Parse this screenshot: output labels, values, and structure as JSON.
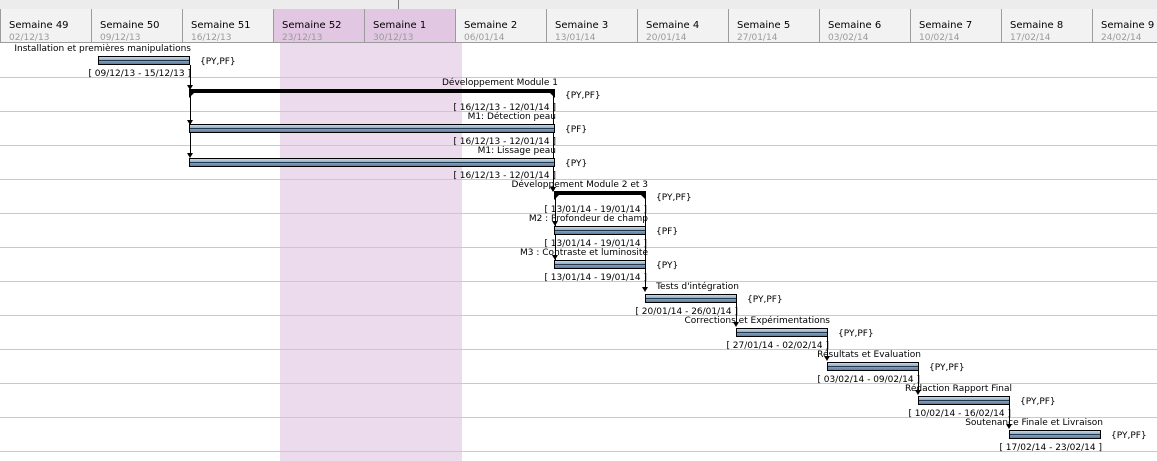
{
  "gantt": {
    "weeks": [
      {
        "label": "Semaine 49",
        "date": "02/12/13"
      },
      {
        "label": "Semaine 50",
        "date": "09/12/13"
      },
      {
        "label": "Semaine 51",
        "date": "16/12/13"
      },
      {
        "label": "Semaine 52",
        "date": "23/12/13"
      },
      {
        "label": "Semaine 1",
        "date": "30/12/13"
      },
      {
        "label": "Semaine 2",
        "date": "06/01/14"
      },
      {
        "label": "Semaine 3",
        "date": "13/01/14"
      },
      {
        "label": "Semaine 4",
        "date": "20/01/14"
      },
      {
        "label": "Semaine 5",
        "date": "27/01/14"
      },
      {
        "label": "Semaine 6",
        "date": "03/02/14"
      },
      {
        "label": "Semaine 7",
        "date": "10/02/14"
      },
      {
        "label": "Semaine 8",
        "date": "17/02/14"
      },
      {
        "label": "Semaine 9",
        "date": "24/02/14"
      }
    ],
    "tasks": [
      {
        "name": "Installation et premières manipulations",
        "dates": "[ 09/12/13 - 15/12/13 ]",
        "resources": "{PY,PF}"
      },
      {
        "name": "Développement Module 1",
        "dates": "[ 16/12/13 - 12/01/14 ]",
        "resources": "{PY,PF}"
      },
      {
        "name": "M1: Détection peau",
        "dates": "[ 16/12/13 - 12/01/14 ]",
        "resources": "{PF}"
      },
      {
        "name": "M1: Lissage peau",
        "dates": "[ 16/12/13 - 12/01/14 ]",
        "resources": "{PY}"
      },
      {
        "name": "Développement Module 2 et 3",
        "dates": "[ 13/01/14 - 19/01/14 ]",
        "resources": "{PY,PF}"
      },
      {
        "name": "M2 : Profondeur de champ",
        "dates": "[ 13/01/14 - 19/01/14 ]",
        "resources": "{PF}"
      },
      {
        "name": "M3 : Contraste et luminosité",
        "dates": "[ 13/01/14 - 19/01/14 ]",
        "resources": "{PY}"
      },
      {
        "name": "Tests d'intégration",
        "dates": "[ 20/01/14 - 26/01/14 ]",
        "resources": "{PY,PF}"
      },
      {
        "name": "Corrections et Expérimentations",
        "dates": "[ 27/01/14 - 02/02/14 ]",
        "resources": "{PY,PF}"
      },
      {
        "name": "Résultats et Evaluation",
        "dates": "[ 03/02/14 - 09/02/14 ]",
        "resources": "{PY,PF}"
      },
      {
        "name": "Rédaction Rapport Final",
        "dates": "[ 10/02/14 - 16/02/14 ]",
        "resources": "{PY,PF}"
      },
      {
        "name": "Soutenance Finale et Livraison",
        "dates": "[ 17/02/14 - 23/02/14 ]",
        "resources": "{PY,PF}"
      }
    ]
  }
}
